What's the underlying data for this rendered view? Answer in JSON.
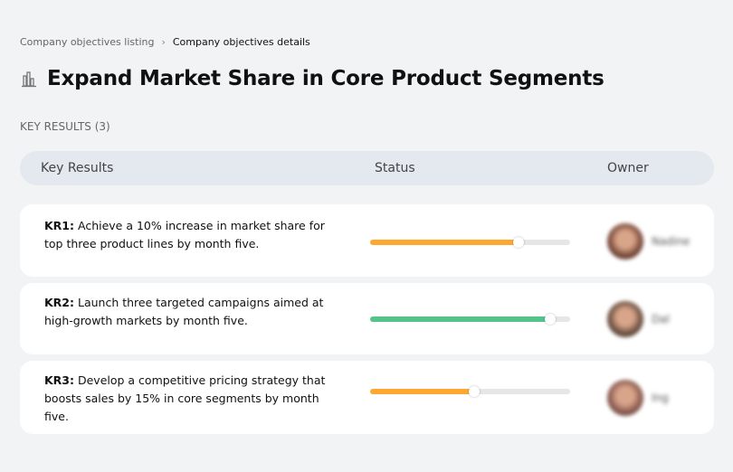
{
  "breadcrumb": {
    "items": [
      "Company objectives listing",
      "Company objectives details"
    ],
    "separator": "›"
  },
  "page": {
    "title": "Expand Market Share in Core Product Segments",
    "icon": "building-chart-icon"
  },
  "section_label": "KEY RESULTS (3)",
  "table": {
    "headers": {
      "key_results": "Key Results",
      "status": "Status",
      "owner": "Owner"
    },
    "rows": [
      {
        "id": "KR1:",
        "text": " Achieve a 10% increase in market share for top three product lines by month five.",
        "progress": 74,
        "color": "#ffa733",
        "owner": "Nadine",
        "avatar": "#7a4a3a"
      },
      {
        "id": "KR2:",
        "text": " Launch three targeted campaigns aimed at high-growth markets by month five.",
        "progress": 90,
        "color": "#55c48b",
        "owner": "Dal",
        "avatar": "#6b5040"
      },
      {
        "id": "KR3:",
        "text": " Develop a competitive pricing strategy that boosts sales by 15% in core segments by month five.",
        "progress": 52,
        "color": "#ffa733",
        "owner": "Ing",
        "avatar": "#8a5a50"
      }
    ]
  }
}
